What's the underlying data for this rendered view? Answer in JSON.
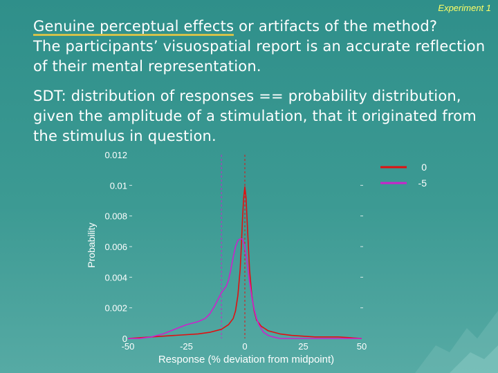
{
  "slide": {
    "tag": "Experiment 1",
    "heading_highlight": "Genuine perceptual effects",
    "heading_rest": " or artifacts of the method?",
    "paragraph_1": "The participants’ visuospatial report is an accurate reflection of their mental representation.",
    "paragraph_2": "SDT: distribution of responses == probability distribution, given the amplitude of a stimulation, that it originated from the stimulus in question."
  },
  "colors": {
    "series_0": "#e01010",
    "series_minus5": "#cc22cc",
    "highlight": "#d4c24a",
    "tag": "#ffff66"
  },
  "chart_data": {
    "type": "line",
    "xlabel": "Response (% deviation from midpoint)",
    "ylabel": "Probability",
    "xlim": [
      -50,
      50
    ],
    "ylim": [
      0,
      0.012
    ],
    "xticks": [
      "-50",
      "-25",
      "0",
      "25",
      "50"
    ],
    "yticks": [
      "0",
      "0.002",
      "0.004",
      "0.006",
      "0.008",
      "0.01",
      "0.012"
    ],
    "legend_position": "top-right",
    "series": [
      {
        "name": "0",
        "x": [
          -50,
          -40,
          -30,
          -20,
          -15,
          -10,
          -7,
          -5,
          -4,
          -3,
          -2,
          -1.5,
          -1,
          -0.5,
          0,
          0.5,
          1,
          1.5,
          2,
          3,
          4,
          5,
          7,
          10,
          15,
          20,
          30,
          40,
          50
        ],
        "values": [
          0,
          0.0001,
          0.0002,
          0.0003,
          0.0004,
          0.0006,
          0.0009,
          0.0013,
          0.0018,
          0.0028,
          0.0045,
          0.006,
          0.0078,
          0.0092,
          0.0099,
          0.0092,
          0.0076,
          0.006,
          0.0045,
          0.0028,
          0.0018,
          0.0012,
          0.0008,
          0.0005,
          0.0003,
          0.0002,
          0.0001,
          0.0001,
          0
        ]
      },
      {
        "name": "-5",
        "x": [
          -50,
          -45,
          -40,
          -35,
          -30,
          -25,
          -20,
          -17,
          -15,
          -13,
          -11,
          -10,
          -9,
          -8,
          -7,
          -6,
          -5,
          -4,
          -3,
          -2,
          -1,
          0,
          1,
          2,
          3,
          4,
          5,
          6,
          8,
          10,
          12,
          15,
          20,
          30,
          40,
          50
        ],
        "values": [
          0,
          0,
          0.0001,
          0.0003,
          0.0006,
          0.0009,
          0.0011,
          0.0013,
          0.0016,
          0.0021,
          0.0027,
          0.003,
          0.0032,
          0.0034,
          0.0038,
          0.0045,
          0.0053,
          0.006,
          0.0064,
          0.0065,
          0.0065,
          0.006,
          0.0049,
          0.0037,
          0.0027,
          0.0019,
          0.0013,
          0.0009,
          0.0004,
          0.0002,
          0.0001,
          0,
          0,
          0,
          0,
          0
        ]
      }
    ],
    "reference_lines_x": [
      -10,
      0
    ]
  }
}
